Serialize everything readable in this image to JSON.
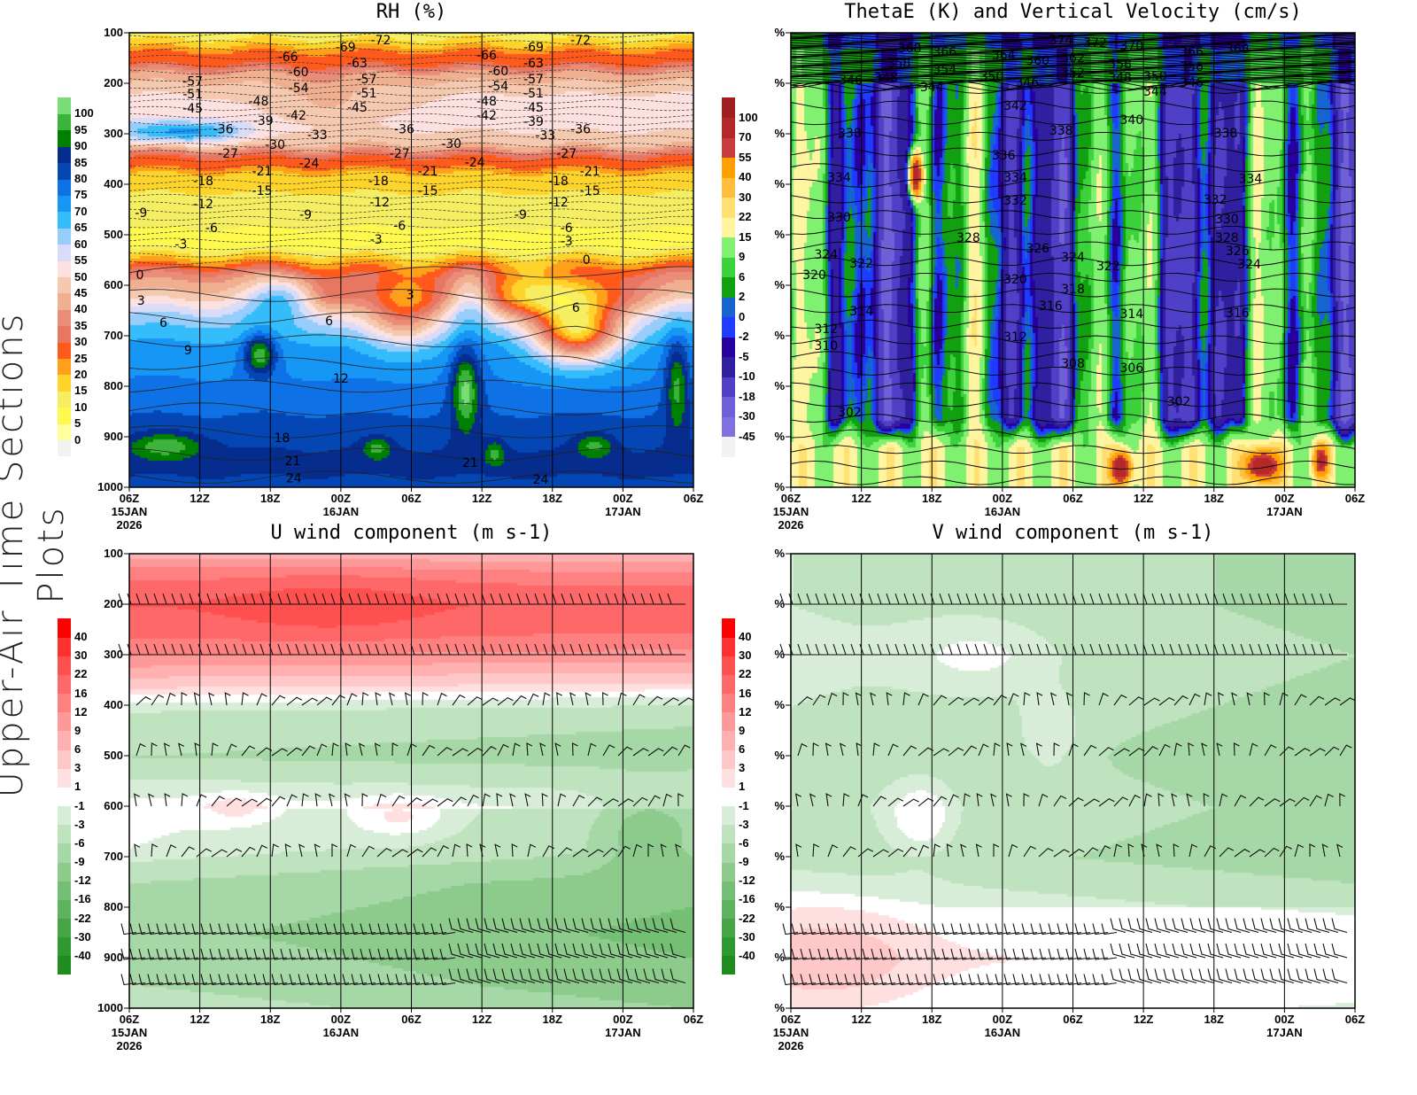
{
  "side_title": "Upper-Air Time Sections Plots",
  "time_axis": {
    "ticks": [
      "06Z",
      "12Z",
      "18Z",
      "00Z",
      "06Z",
      "12Z",
      "18Z",
      "00Z",
      "06Z"
    ],
    "hours": [
      0,
      6,
      12,
      18,
      24,
      30,
      36,
      42,
      48
    ],
    "dates": [
      {
        "hour": 0,
        "lines": [
          "15JAN",
          "2026"
        ]
      },
      {
        "hour": 18,
        "lines": [
          "16JAN"
        ]
      },
      {
        "hour": 42,
        "lines": [
          "17JAN"
        ]
      }
    ]
  },
  "chart_data": [
    {
      "type": "heatmap",
      "title": "RH (%)",
      "ylim": [
        1000,
        100
      ],
      "yticklabels": [
        "100",
        "200",
        "300",
        "400",
        "500",
        "600",
        "700",
        "800",
        "900",
        "1000"
      ],
      "colorbar": {
        "labels": [
          "0",
          "5",
          "10",
          "15",
          "20",
          "25",
          "30",
          "35",
          "40",
          "45",
          "50",
          "55",
          "60",
          "65",
          "70",
          "75",
          "80",
          "85",
          "90",
          "95",
          "100"
        ],
        "colors": [
          "#f2f2f2",
          "#fffe9c",
          "#fff94d",
          "#f5ee62",
          "#ffd42a",
          "#ffa01a",
          "#ff5a1c",
          "#e77762",
          "#eb8c78",
          "#f0b090",
          "#f5c8b0",
          "#fde0e0",
          "#d8dcf8",
          "#96cdfa",
          "#35bdfb",
          "#1696f5",
          "#0e72e6",
          "#0446b3",
          "#062c8e",
          "#008000",
          "#3cb43c",
          "#78dc78"
        ]
      },
      "contour_labels": [
        {
          "v": "-66",
          "h": 13.5,
          "p": 147
        },
        {
          "v": "-69",
          "h": 18.4,
          "p": 128
        },
        {
          "v": "-72",
          "h": 21.4,
          "p": 114
        },
        {
          "v": "-63",
          "h": 19.4,
          "p": 160
        },
        {
          "v": "-60",
          "h": 14.4,
          "p": 177
        },
        {
          "v": "-54",
          "h": 14.4,
          "p": 209
        },
        {
          "v": "-57",
          "h": 5.4,
          "p": 196
        },
        {
          "v": "-51",
          "h": 5.4,
          "p": 221
        },
        {
          "v": "-45",
          "h": 5.4,
          "p": 249
        },
        {
          "v": "-48",
          "h": 11,
          "p": 235
        },
        {
          "v": "-42",
          "h": 14.2,
          "p": 263
        },
        {
          "v": "-39",
          "h": 11.4,
          "p": 274
        },
        {
          "v": "-36",
          "h": 8,
          "p": 290
        },
        {
          "v": "-30",
          "h": 12.4,
          "p": 321
        },
        {
          "v": "-33",
          "h": 16,
          "p": 302
        },
        {
          "v": "-27",
          "h": 8.4,
          "p": 339
        },
        {
          "v": "-24",
          "h": 15.3,
          "p": 358
        },
        {
          "v": "-21",
          "h": 11.3,
          "p": 374
        },
        {
          "v": "-18",
          "h": 6.3,
          "p": 393
        },
        {
          "v": "-15",
          "h": 11.3,
          "p": 412
        },
        {
          "v": "-12",
          "h": 6.3,
          "p": 439
        },
        {
          "v": "-9",
          "h": 1,
          "p": 456
        },
        {
          "v": "-6",
          "h": 7,
          "p": 486
        },
        {
          "v": "-3",
          "h": 4.4,
          "p": 518
        },
        {
          "v": "0",
          "h": 0.9,
          "p": 579
        },
        {
          "v": "3",
          "h": 1,
          "p": 630
        },
        {
          "v": "6",
          "h": 2.9,
          "p": 674
        },
        {
          "v": "9",
          "h": 5,
          "p": 728
        },
        {
          "v": "12",
          "h": 18,
          "p": 784
        },
        {
          "v": "18",
          "h": 13,
          "p": 902
        },
        {
          "v": "21",
          "h": 13.9,
          "p": 947
        },
        {
          "v": "24",
          "h": 14,
          "p": 982
        },
        {
          "v": "-57",
          "h": 20.2,
          "p": 191
        },
        {
          "v": "-51",
          "h": 20.2,
          "p": 219
        },
        {
          "v": "-45",
          "h": 19.4,
          "p": 247
        },
        {
          "v": "-36",
          "h": 23.4,
          "p": 290
        },
        {
          "v": "-27",
          "h": 23,
          "p": 339
        },
        {
          "v": "-21",
          "h": 25.4,
          "p": 374
        },
        {
          "v": "-18",
          "h": 21.2,
          "p": 393
        },
        {
          "v": "-15",
          "h": 25.4,
          "p": 412
        },
        {
          "v": "-12",
          "h": 21.3,
          "p": 435
        },
        {
          "v": "-9",
          "h": 15,
          "p": 460
        },
        {
          "v": "-6",
          "h": 23,
          "p": 482
        },
        {
          "v": "-3",
          "h": 21,
          "p": 509
        },
        {
          "v": "3",
          "h": 23.9,
          "p": 618
        },
        {
          "v": "6",
          "h": 17,
          "p": 670
        },
        {
          "v": "-66",
          "h": 30.4,
          "p": 144
        },
        {
          "v": "-60",
          "h": 31.4,
          "p": 175
        },
        {
          "v": "-54",
          "h": 31.4,
          "p": 205
        },
        {
          "v": "-48",
          "h": 30.4,
          "p": 235
        },
        {
          "v": "-42",
          "h": 30.4,
          "p": 263
        },
        {
          "v": "-30",
          "h": 27.4,
          "p": 319
        },
        {
          "v": "-24",
          "h": 29.4,
          "p": 356
        },
        {
          "v": "-69",
          "h": 34.4,
          "p": 128
        },
        {
          "v": "-63",
          "h": 34.4,
          "p": 160
        },
        {
          "v": "-57",
          "h": 34.4,
          "p": 191
        },
        {
          "v": "-51",
          "h": 34.4,
          "p": 219
        },
        {
          "v": "-45",
          "h": 34.4,
          "p": 247
        },
        {
          "v": "-39",
          "h": 34.4,
          "p": 275
        },
        {
          "v": "-33",
          "h": 35.4,
          "p": 303
        },
        {
          "v": "-72",
          "h": 38.4,
          "p": 114
        },
        {
          "v": "-36",
          "h": 38.4,
          "p": 290
        },
        {
          "v": "-27",
          "h": 37.2,
          "p": 339
        },
        {
          "v": "-21",
          "h": 39.2,
          "p": 374
        },
        {
          "v": "-18",
          "h": 36.5,
          "p": 393
        },
        {
          "v": "-15",
          "h": 39.2,
          "p": 412
        },
        {
          "v": "-12",
          "h": 36.5,
          "p": 435
        },
        {
          "v": "-9",
          "h": 33.3,
          "p": 460
        },
        {
          "v": "-6",
          "h": 37.2,
          "p": 486
        },
        {
          "v": "-3",
          "h": 37.2,
          "p": 512
        },
        {
          "v": "0",
          "h": 38.9,
          "p": 549
        },
        {
          "v": "6",
          "h": 38,
          "p": 644
        },
        {
          "v": "21",
          "h": 29,
          "p": 951
        },
        {
          "v": "24",
          "h": 35,
          "p": 984
        }
      ]
    },
    {
      "type": "heatmap",
      "title": "ThetaE (K) and Vertical Velocity (cm/s)",
      "ylim": [
        1000,
        100
      ],
      "yticklabels": [
        "%",
        "%",
        "%",
        "%",
        "%",
        "%",
        "%",
        "%",
        "%",
        "%"
      ],
      "colorbar": {
        "labels": [
          "-45",
          "-30",
          "-18",
          "-10",
          "-5",
          "-2",
          "0",
          "2",
          "6",
          "9",
          "15",
          "22",
          "30",
          "40",
          "55",
          "70",
          "100"
        ],
        "colors": [
          "#f2f2f2",
          "#8070e0",
          "#7060d8",
          "#5040c8",
          "#3020a0",
          "#2800a0",
          "#1e3cff",
          "#1664d0",
          "#10a010",
          "#3cd23c",
          "#80f070",
          "#fff5a0",
          "#ffe070",
          "#ffbe3c",
          "#ffa000",
          "#c83c3c",
          "#b42828",
          "#a01e1e"
        ]
      },
      "contour_labels": [
        {
          "v": "368",
          "h": 10.1,
          "p": 130
        },
        {
          "v": "366",
          "h": 13.1,
          "p": 137
        },
        {
          "v": "358",
          "h": 9.2,
          "p": 160
        },
        {
          "v": "354",
          "h": 13.1,
          "p": 172
        },
        {
          "v": "348",
          "h": 8.1,
          "p": 189
        },
        {
          "v": "346",
          "h": 5.1,
          "p": 193
        },
        {
          "v": "344",
          "h": 12,
          "p": 207
        },
        {
          "v": "364",
          "h": 18.1,
          "p": 144
        },
        {
          "v": "360",
          "h": 21,
          "p": 154
        },
        {
          "v": "350",
          "h": 17.1,
          "p": 186
        },
        {
          "v": "346",
          "h": 20.1,
          "p": 198
        },
        {
          "v": "374",
          "h": 23,
          "p": 114
        },
        {
          "v": "372",
          "h": 25.9,
          "p": 119
        },
        {
          "v": "370",
          "h": 29,
          "p": 125
        },
        {
          "v": "362",
          "h": 24,
          "p": 149
        },
        {
          "v": "358",
          "h": 28,
          "p": 161
        },
        {
          "v": "352",
          "h": 24,
          "p": 179
        },
        {
          "v": "348",
          "h": 28,
          "p": 189
        },
        {
          "v": "350",
          "h": 31,
          "p": 186
        },
        {
          "v": "344",
          "h": 31,
          "p": 216
        },
        {
          "v": "366",
          "h": 34.1,
          "p": 137
        },
        {
          "v": "356",
          "h": 34.1,
          "p": 167
        },
        {
          "v": "346",
          "h": 34.1,
          "p": 198
        },
        {
          "v": "368",
          "h": 38,
          "p": 132
        },
        {
          "v": "342",
          "h": 19.1,
          "p": 244
        },
        {
          "v": "340",
          "h": 29,
          "p": 272
        },
        {
          "v": "338",
          "h": 5,
          "p": 298
        },
        {
          "v": "338",
          "h": 23,
          "p": 293
        },
        {
          "v": "338",
          "h": 37,
          "p": 298
        },
        {
          "v": "336",
          "h": 18.1,
          "p": 342
        },
        {
          "v": "334",
          "h": 4.1,
          "p": 386
        },
        {
          "v": "334",
          "h": 19.1,
          "p": 386
        },
        {
          "v": "334",
          "h": 39.1,
          "p": 389
        },
        {
          "v": "332",
          "h": 19.1,
          "p": 432
        },
        {
          "v": "332",
          "h": 36.1,
          "p": 430
        },
        {
          "v": "330",
          "h": 4.1,
          "p": 465
        },
        {
          "v": "330",
          "h": 37.1,
          "p": 468
        },
        {
          "v": "328",
          "h": 15.1,
          "p": 505
        },
        {
          "v": "328",
          "h": 37.1,
          "p": 505
        },
        {
          "v": "326",
          "h": 21,
          "p": 526
        },
        {
          "v": "326",
          "h": 38,
          "p": 532
        },
        {
          "v": "324",
          "h": 3,
          "p": 539
        },
        {
          "v": "324",
          "h": 24,
          "p": 544
        },
        {
          "v": "324",
          "h": 39,
          "p": 558
        },
        {
          "v": "322",
          "h": 6,
          "p": 556
        },
        {
          "v": "322",
          "h": 27,
          "p": 561
        },
        {
          "v": "320",
          "h": 2,
          "p": 579
        },
        {
          "v": "320",
          "h": 19.1,
          "p": 588
        },
        {
          "v": "318",
          "h": 24,
          "p": 607
        },
        {
          "v": "316",
          "h": 22.1,
          "p": 640
        },
        {
          "v": "316",
          "h": 38,
          "p": 654
        },
        {
          "v": "314",
          "h": 6,
          "p": 651
        },
        {
          "v": "314",
          "h": 29,
          "p": 656
        },
        {
          "v": "312",
          "h": 3,
          "p": 686
        },
        {
          "v": "312",
          "h": 19.1,
          "p": 702
        },
        {
          "v": "310",
          "h": 3,
          "p": 719
        },
        {
          "v": "308",
          "h": 24,
          "p": 754
        },
        {
          "v": "306",
          "h": 29,
          "p": 763
        },
        {
          "v": "302",
          "h": 5,
          "p": 851
        },
        {
          "v": "302",
          "h": 33,
          "p": 830
        }
      ]
    },
    {
      "type": "heatmap",
      "title": "U wind component (m s-1)",
      "ylim": [
        1000,
        100
      ],
      "yticklabels": [
        "100",
        "200",
        "300",
        "400",
        "500",
        "600",
        "700",
        "800",
        "900",
        "1000"
      ],
      "colorbar": {
        "labels": [
          "-40",
          "-30",
          "-22",
          "-16",
          "-12",
          "-9",
          "-6",
          "-3",
          "-1",
          "1",
          "3",
          "6",
          "9",
          "12",
          "16",
          "22",
          "30",
          "40"
        ],
        "colors": [
          "#1e8c1e",
          "#2e992e",
          "#46a646",
          "#5db35d",
          "#74bf74",
          "#8ccb8c",
          "#a6d7a6",
          "#bfe2bf",
          "#d8edd8",
          "#ffffff",
          "#ffe0e0",
          "#ffc8c8",
          "#ffb0b0",
          "#ff9898",
          "#ff8080",
          "#ff6868",
          "#ff5050",
          "#ff3030",
          "#ff0000"
        ]
      },
      "barb_levels": [
        200,
        300,
        400,
        500,
        600,
        700,
        850,
        900,
        950
      ],
      "contour_labels": []
    },
    {
      "type": "heatmap",
      "title": "V wind component (m s-1)",
      "ylim": [
        1000,
        100
      ],
      "yticklabels": [
        "%",
        "%",
        "%",
        "%",
        "%",
        "%",
        "%",
        "%",
        "%",
        "%"
      ],
      "colorbar": {
        "labels": [
          "-40",
          "-30",
          "-22",
          "-16",
          "-12",
          "-9",
          "-6",
          "-3",
          "-1",
          "1",
          "3",
          "6",
          "9",
          "12",
          "16",
          "22",
          "30",
          "40"
        ],
        "colors": [
          "#1e8c1e",
          "#2e992e",
          "#46a646",
          "#5db35d",
          "#74bf74",
          "#8ccb8c",
          "#a6d7a6",
          "#bfe2bf",
          "#d8edd8",
          "#ffffff",
          "#ffe0e0",
          "#ffc8c8",
          "#ffb0b0",
          "#ff9898",
          "#ff8080",
          "#ff6868",
          "#ff5050",
          "#ff3030",
          "#ff0000"
        ]
      },
      "barb_levels": [
        200,
        300,
        400,
        500,
        600,
        700,
        850,
        900,
        950
      ],
      "contour_labels": []
    }
  ]
}
